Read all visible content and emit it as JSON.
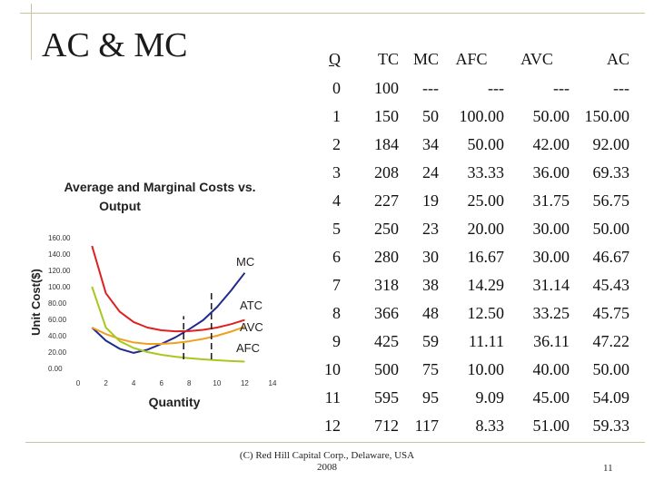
{
  "slide": {
    "title": "AC & MC",
    "footer_line1": "(C) Red Hill Capital Corp., Delaware, USA",
    "footer_line2": "2008",
    "page_number": "11"
  },
  "table": {
    "headers": [
      "Q",
      "TC",
      "MC",
      "AFC",
      "AVC",
      "AC"
    ],
    "rows": [
      [
        "0",
        "100",
        "---",
        "---",
        "---",
        "---"
      ],
      [
        "1",
        "150",
        "50",
        "100.00",
        "50.00",
        "150.00"
      ],
      [
        "2",
        "184",
        "34",
        "50.00",
        "42.00",
        "92.00"
      ],
      [
        "3",
        "208",
        "24",
        "33.33",
        "36.00",
        "69.33"
      ],
      [
        "4",
        "227",
        "19",
        "25.00",
        "31.75",
        "56.75"
      ],
      [
        "5",
        "250",
        "23",
        "20.00",
        "30.00",
        "50.00"
      ],
      [
        "6",
        "280",
        "30",
        "16.67",
        "30.00",
        "46.67"
      ],
      [
        "7",
        "318",
        "38",
        "14.29",
        "31.14",
        "45.43"
      ],
      [
        "8",
        "366",
        "48",
        "12.50",
        "33.25",
        "45.75"
      ],
      [
        "9",
        "425",
        "59",
        "11.11",
        "36.11",
        "47.22"
      ],
      [
        "10",
        "500",
        "75",
        "10.00",
        "40.00",
        "50.00"
      ],
      [
        "11",
        "595",
        "95",
        "9.09",
        "45.00",
        "54.09"
      ],
      [
        "12",
        "712",
        "117",
        "8.33",
        "51.00",
        "59.33"
      ]
    ]
  },
  "chart_data": {
    "type": "line",
    "title_line1": "Average and Marginal Costs vs.",
    "title_line2": "Output",
    "xlabel": "Quantity",
    "ylabel": "Unit Cost($)",
    "xlim": [
      0,
      14
    ],
    "ylim": [
      0,
      160
    ],
    "x_ticks": [
      "0",
      "2",
      "4",
      "6",
      "8",
      "10",
      "12",
      "14"
    ],
    "y_ticks": [
      "0.00",
      "20.00",
      "40.00",
      "60.00",
      "80.00",
      "100.00",
      "120.00",
      "140.00",
      "160.00"
    ],
    "grid": false,
    "series": [
      {
        "name": "MC",
        "color": "#1f2a8c",
        "x": [
          1,
          2,
          3,
          4,
          5,
          6,
          7,
          8,
          9,
          10,
          11,
          12
        ],
        "values": [
          50,
          34,
          24,
          19,
          23,
          30,
          38,
          48,
          59,
          75,
          95,
          117
        ]
      },
      {
        "name": "ATC",
        "color": "#e02020",
        "x": [
          1,
          2,
          3,
          4,
          5,
          6,
          7,
          8,
          9,
          10,
          11,
          12
        ],
        "values": [
          150,
          92,
          69.33,
          56.75,
          50,
          46.67,
          45.43,
          45.75,
          47.22,
          50,
          54.09,
          59.33
        ]
      },
      {
        "name": "AVC",
        "color": "#f0a020",
        "x": [
          1,
          2,
          3,
          4,
          5,
          6,
          7,
          8,
          9,
          10,
          11,
          12
        ],
        "values": [
          50,
          42,
          36,
          31.75,
          30,
          30,
          31.14,
          33.25,
          36.11,
          40,
          45,
          51
        ]
      },
      {
        "name": "AFC",
        "color": "#a8c820",
        "x": [
          1,
          2,
          3,
          4,
          5,
          6,
          7,
          8,
          9,
          10,
          11,
          12
        ],
        "values": [
          100,
          50,
          33.33,
          25,
          20,
          16.67,
          14.29,
          12.5,
          11.11,
          10,
          9.09,
          8.33
        ]
      }
    ],
    "markers": [
      {
        "x": 7.6,
        "y": 64
      },
      {
        "x": 9.6,
        "y": 95
      }
    ]
  }
}
